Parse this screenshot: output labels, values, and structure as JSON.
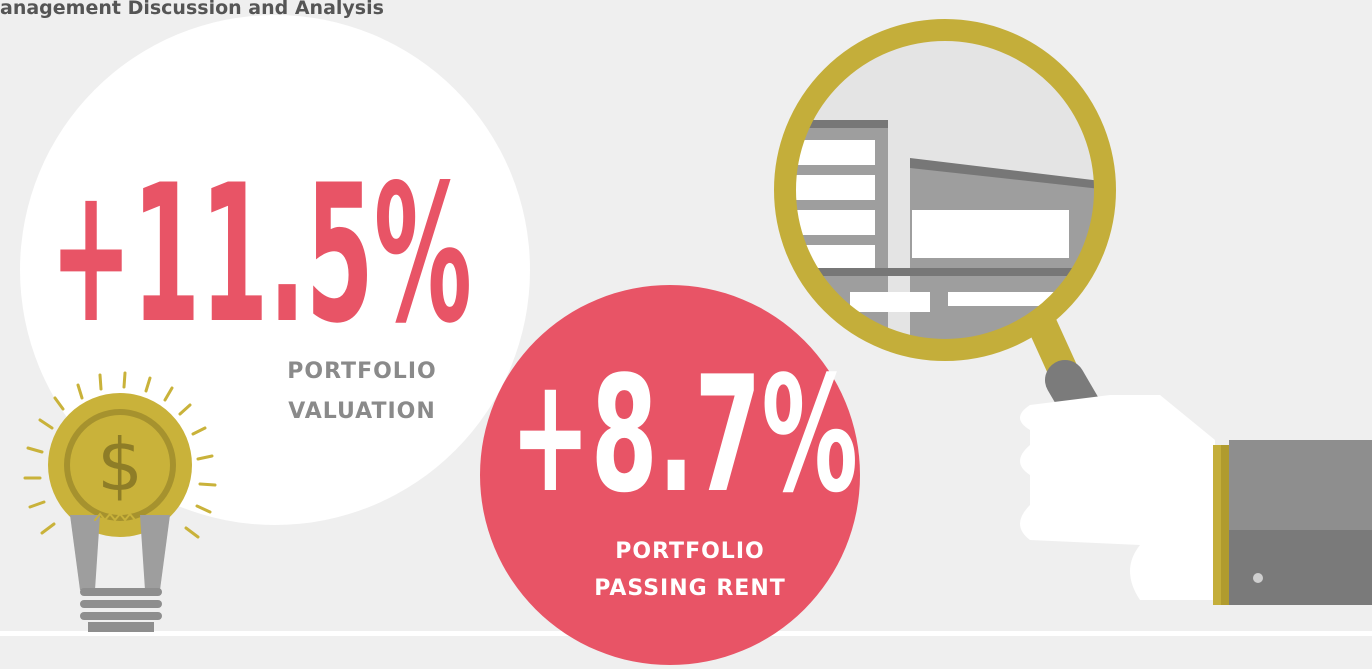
{
  "header": {
    "title": "anagement Discussion and Analysis"
  },
  "stats": [
    {
      "value": "+11.5%",
      "label": [
        "PORTFOLIO",
        "VALUATION"
      ]
    },
    {
      "value": "+8.7%",
      "label": [
        "PORTFOLIO",
        "PASSING RENT"
      ]
    }
  ]
}
